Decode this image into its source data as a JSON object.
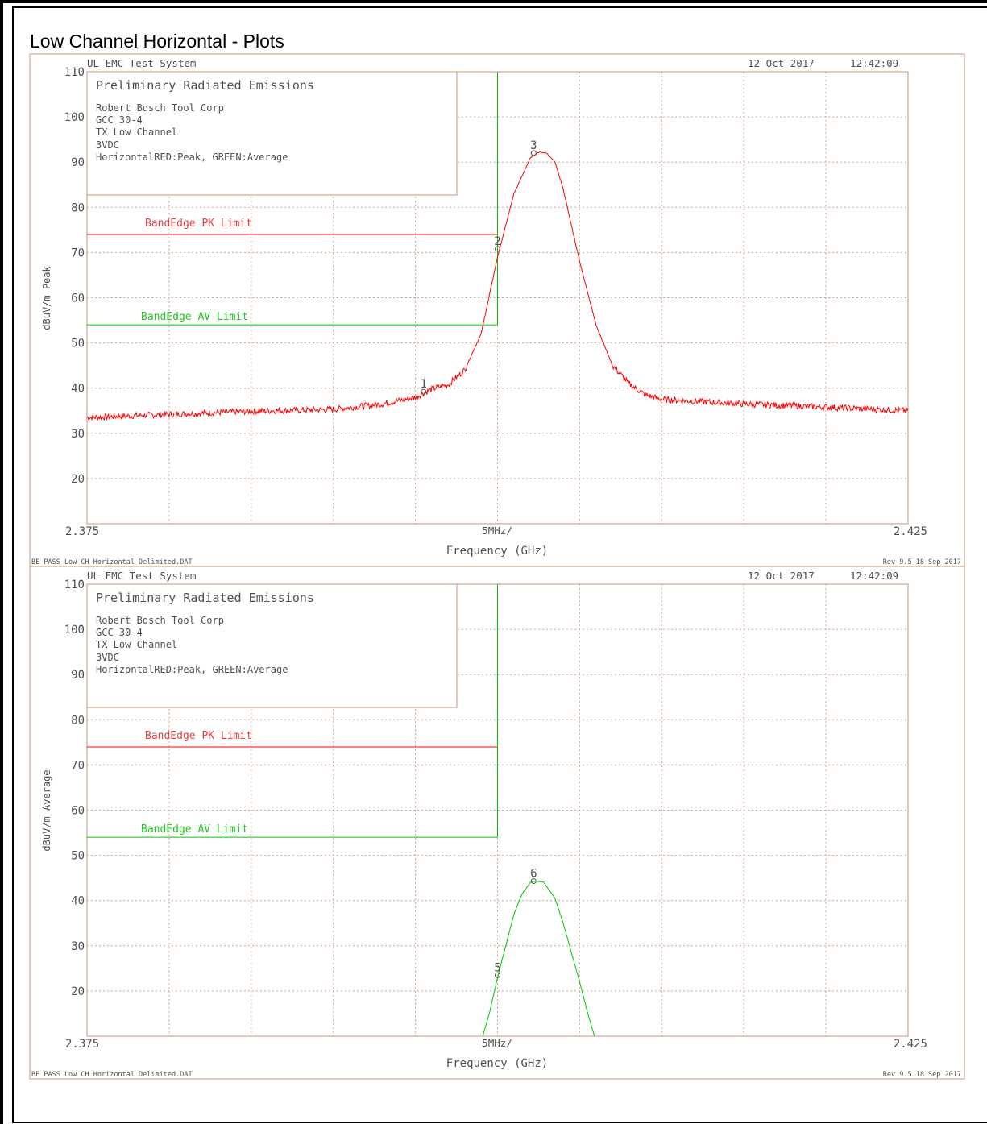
{
  "page_title": "Low Channel Horizontal - Plots",
  "colors": {
    "peak_trace": "#ff0000",
    "average_trace": "#00c800",
    "pk_limit": "#ff0000",
    "av_limit": "#00c800",
    "frame": "#c89678",
    "grid": "#c89678",
    "text": "#505050"
  },
  "plots": [
    {
      "header_left": "UL EMC Test System",
      "header_date": "12 Oct 2017",
      "header_time": "12:42:09",
      "info_title": "Preliminary Radiated Emissions",
      "info_lines": [
        "Robert Bosch Tool Corp",
        "GCC 30-4",
        "TX Low Channel",
        "3VDC",
        "HorizontalRED:Peak, GREEN:Average"
      ],
      "pk_limit_label": "BandEdge PK Limit",
      "av_limit_label": "BandEdge AV Limit",
      "ylabel": "dBuV/m Peak",
      "xlabel": "Frequency (GHz)",
      "x_start_label": "2.375",
      "x_end_label": "2.425",
      "x_div_label": "5MHz/",
      "footer_left": "BE PASS Low CH Horizontal Delimited.DAT",
      "footer_right": "Rev 9.5 18 Sep 2017",
      "marker_labels": [
        "1",
        "2",
        "3"
      ]
    },
    {
      "header_left": "UL EMC Test System",
      "header_date": "12 Oct 2017",
      "header_time": "12:42:09",
      "info_title": "Preliminary Radiated Emissions",
      "info_lines": [
        "Robert Bosch Tool Corp",
        "GCC 30-4",
        "TX Low Channel",
        "3VDC",
        "HorizontalRED:Peak, GREEN:Average"
      ],
      "pk_limit_label": "BandEdge PK Limit",
      "av_limit_label": "BandEdge AV Limit",
      "ylabel": "dBuV/m Average",
      "xlabel": "Frequency (GHz)",
      "x_start_label": "2.375",
      "x_end_label": "2.425",
      "x_div_label": "5MHz/",
      "footer_left": "BE PASS Low CH Horizontal Delimited.DAT",
      "footer_right": "Rev 9.5 18 Sep 2017",
      "marker_labels": [
        "5",
        "6"
      ]
    }
  ],
  "chart_data": [
    {
      "type": "line",
      "ylabel": "dBuV/m Peak",
      "xlabel": "Frequency (GHz)",
      "xlim": [
        2.375,
        2.425
      ],
      "ylim": [
        10,
        110
      ],
      "yticks": [
        20,
        30,
        40,
        50,
        60,
        70,
        80,
        90,
        100,
        110
      ],
      "grid": true,
      "limits": [
        {
          "name": "BandEdge PK Limit",
          "value": 74,
          "x_end": 2.4
        },
        {
          "name": "BandEdge AV Limit",
          "value": 54,
          "x_end": 2.4
        }
      ],
      "series": [
        {
          "name": "RED:Peak",
          "color": "red",
          "x": [
            2.375,
            2.38,
            2.385,
            2.39,
            2.393,
            2.395,
            2.396,
            2.397,
            2.398,
            2.399,
            2.4,
            2.401,
            2.402,
            2.4025,
            2.403,
            2.4035,
            2.404,
            2.405,
            2.406,
            2.407,
            2.408,
            2.409,
            2.41,
            2.415,
            2.42,
            2.425
          ],
          "y": [
            33.5,
            34.2,
            34.9,
            35.3,
            36.5,
            38,
            39.8,
            40.8,
            44,
            52,
            69,
            83,
            91,
            92.2,
            92,
            90,
            84,
            68,
            54,
            45,
            41,
            38.5,
            37.5,
            36.5,
            35.8,
            35
          ]
        }
      ],
      "markers": [
        {
          "label": "1",
          "x": 2.3955,
          "y": 39.2
        },
        {
          "label": "2",
          "x": 2.4,
          "y": 70.8
        },
        {
          "label": "3",
          "x": 2.4022,
          "y": 92
        }
      ]
    },
    {
      "type": "line",
      "ylabel": "dBuV/m Average",
      "xlabel": "Frequency (GHz)",
      "xlim": [
        2.375,
        2.425
      ],
      "ylim": [
        10,
        110
      ],
      "yticks": [
        20,
        30,
        40,
        50,
        60,
        70,
        80,
        90,
        100,
        110
      ],
      "grid": true,
      "limits": [
        {
          "name": "BandEdge PK Limit",
          "value": 74,
          "x_end": 2.4
        },
        {
          "name": "BandEdge AV Limit",
          "value": 54,
          "x_end": 2.4
        }
      ],
      "series": [
        {
          "name": "GREEN:Average",
          "color": "green",
          "x": [
            2.3991,
            2.3995,
            2.4,
            2.4005,
            2.401,
            2.4015,
            2.402,
            2.4023,
            2.4028,
            2.4035,
            2.404,
            2.405,
            2.4055,
            2.4059
          ],
          "y": [
            10,
            15,
            23,
            30,
            37,
            41.5,
            44,
            44.3,
            44.1,
            40.5,
            35,
            22,
            15,
            10
          ]
        }
      ],
      "markers": [
        {
          "label": "5",
          "x": 2.4,
          "y": 23.5
        },
        {
          "label": "6",
          "x": 2.4022,
          "y": 44.3
        }
      ]
    }
  ]
}
